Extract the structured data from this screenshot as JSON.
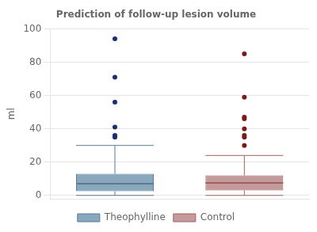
{
  "chart_data": {
    "type": "box",
    "title": "Prediction of follow-up lesion volume",
    "ylabel": "ml",
    "series": [
      {
        "name": "Theophylline",
        "color": "#8aa8bc",
        "edge_color": "#5a7a96",
        "outlier_color": "#1a2f6e",
        "q1": 2.5,
        "median": 7,
        "q3": 13,
        "whisker_low": 0,
        "whisker_high": 30,
        "outliers": [
          35,
          36,
          41,
          56,
          71,
          94
        ]
      },
      {
        "name": "Control",
        "color": "#c49a9a",
        "edge_color": "#a06060",
        "outlier_color": "#7a1a1a",
        "q1": 3,
        "median": 7.5,
        "q3": 12,
        "whisker_low": 0,
        "whisker_high": 24,
        "outliers": [
          30,
          35,
          36,
          40,
          46,
          47,
          59,
          85
        ]
      }
    ],
    "ylim": [
      -2,
      100
    ],
    "yticks": [
      0,
      20,
      40,
      60,
      80,
      100
    ],
    "grid": true,
    "legend": "bottom",
    "tick_labels": "y"
  }
}
